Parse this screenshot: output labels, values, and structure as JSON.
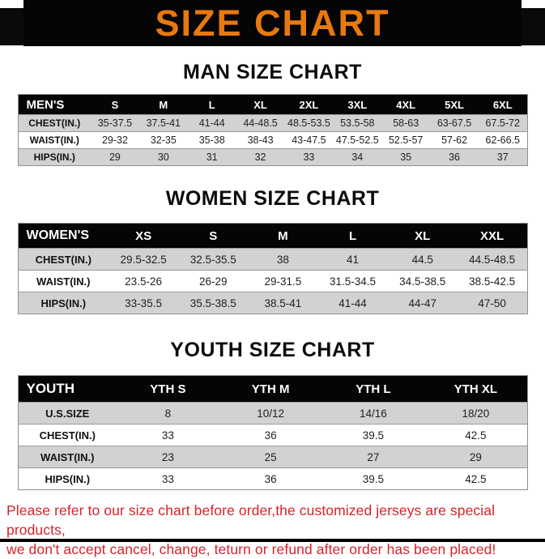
{
  "banner": {
    "title": "SIZE CHART",
    "bg_color": "#050505",
    "text_color": "#e8790f"
  },
  "sections": [
    {
      "heading": "MAN SIZE CHART",
      "table": {
        "header": [
          "MEN'S",
          "S",
          "M",
          "L",
          "XL",
          "2XL",
          "3XL",
          "4XL",
          "5XL",
          "6XL"
        ],
        "rows": [
          [
            "CHEST(IN.)",
            "35-37.5",
            "37.5-41",
            "41-44",
            "44-48.5",
            "48.5-53.5",
            "53.5-58",
            "58-63",
            "63-67.5",
            "67.5-72"
          ],
          [
            "WAIST(IN.)",
            "29-32",
            "32-35",
            "35-38",
            "38-43",
            "43-47.5",
            "47.5-52.5",
            "52.5-57",
            "57-62",
            "62-66.5"
          ],
          [
            "HIPS(IN.)",
            "29",
            "30",
            "31",
            "32",
            "33",
            "34",
            "35",
            "36",
            "37"
          ]
        ]
      }
    },
    {
      "heading": "WOMEN SIZE CHART",
      "table": {
        "header": [
          "WOMEN'S",
          "XS",
          "S",
          "M",
          "L",
          "XL",
          "XXL"
        ],
        "rows": [
          [
            "CHEST(IN.)",
            "29.5-32.5",
            "32.5-35.5",
            "38",
            "41",
            "44.5",
            "44.5-48.5"
          ],
          [
            "WAIST(IN.)",
            "23.5-26",
            "26-29",
            "29-31.5",
            "31.5-34.5",
            "34.5-38.5",
            "38.5-42.5"
          ],
          [
            "HIPS(IN.)",
            "33-35.5",
            "35.5-38.5",
            "38.5-41",
            "41-44",
            "44-47",
            "47-50"
          ]
        ]
      }
    },
    {
      "heading": "YOUTH SIZE CHART",
      "table": {
        "header": [
          "YOUTH",
          "YTH S",
          "YTH M",
          "YTH L",
          "YTH XL"
        ],
        "rows": [
          [
            "U.S.SIZE",
            "8",
            "10/12",
            "14/16",
            "18/20"
          ],
          [
            "CHEST(IN.)",
            "33",
            "36",
            "39.5",
            "42.5"
          ],
          [
            "WAIST(IN.)",
            "23",
            "25",
            "27",
            "29"
          ],
          [
            "HIPS(IN.)",
            "33",
            "36",
            "39.5",
            "42.5"
          ]
        ]
      }
    }
  ],
  "footer": {
    "line1": "Please refer to our size chart before order,the customized jerseys are special products,",
    "line2": "we don't accept cancel, change, teturn or refund after order has been placed!"
  }
}
